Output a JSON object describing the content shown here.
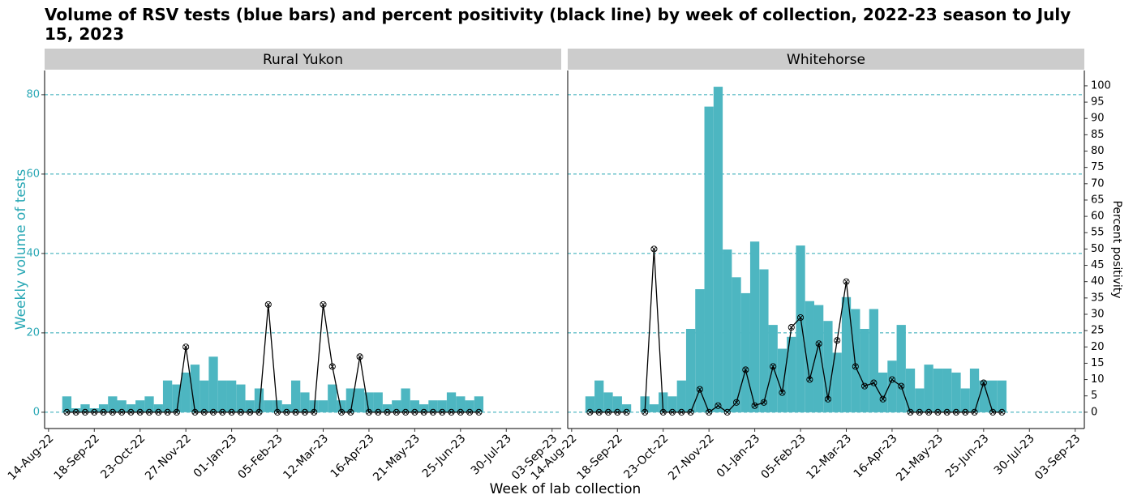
{
  "title": "Volume of RSV tests (blue bars) and percent positivity (black line) by week of collection, 2022-23 season to July 15, 2023",
  "xlabel": "Week of lab collection",
  "ylabel": "Weekly volume of tests",
  "y2label": "Percent positivity",
  "chart_data": [
    {
      "type": "bar",
      "title": "Rural Yukon",
      "x": [
        "2022-08-28",
        "2022-09-04",
        "2022-09-11",
        "2022-09-18",
        "2022-09-25",
        "2022-10-02",
        "2022-10-09",
        "2022-10-16",
        "2022-10-23",
        "2022-10-30",
        "2022-11-06",
        "2022-11-13",
        "2022-11-20",
        "2022-11-27",
        "2022-12-04",
        "2022-12-11",
        "2022-12-18",
        "2022-12-25",
        "2023-01-01",
        "2023-01-08",
        "2023-01-15",
        "2023-01-22",
        "2023-01-29",
        "2023-02-05",
        "2023-02-12",
        "2023-02-19",
        "2023-02-26",
        "2023-03-05",
        "2023-03-12",
        "2023-03-19",
        "2023-03-26",
        "2023-04-02",
        "2023-04-09",
        "2023-04-16",
        "2023-04-23",
        "2023-04-30",
        "2023-05-07",
        "2023-05-14",
        "2023-05-21",
        "2023-05-28",
        "2023-06-04",
        "2023-06-11",
        "2023-06-18",
        "2023-06-25",
        "2023-07-02",
        "2023-07-09"
      ],
      "series": [
        {
          "color": "#4db6c1",
          "values": [
            4,
            1,
            2,
            1,
            2,
            4,
            3,
            2,
            3,
            4,
            2,
            8,
            7,
            10,
            12,
            8,
            14,
            8,
            8,
            7,
            3,
            6,
            3,
            3,
            2,
            8,
            5,
            3,
            3,
            7,
            3,
            6,
            6,
            5,
            5,
            2,
            3,
            6,
            3,
            2,
            3,
            3,
            5,
            4,
            3,
            4
          ]
        },
        {
          "type": "line",
          "axis": "y2",
          "color": "#000000",
          "values": [
            0,
            0,
            0,
            0,
            0,
            0,
            0,
            0,
            0,
            0,
            0,
            0,
            0,
            20,
            0,
            0,
            0,
            0,
            0,
            0,
            0,
            0,
            33,
            0,
            0,
            0,
            0,
            0,
            33,
            14,
            0,
            0,
            17,
            0,
            0,
            0,
            0,
            0,
            0,
            0,
            0,
            0,
            0,
            0,
            0,
            0
          ]
        }
      ],
      "xlim": [
        "2022-08-11",
        "2023-09-10"
      ],
      "xticks": [
        {
          "value": "2022-08-14",
          "label": "14-Aug-22"
        },
        {
          "value": "2022-09-18",
          "label": "18-Sep-22"
        },
        {
          "value": "2022-10-23",
          "label": "23-Oct-22"
        },
        {
          "value": "2022-11-27",
          "label": "27-Nov-22"
        },
        {
          "value": "2023-01-01",
          "label": "01-Jan-23"
        },
        {
          "value": "2023-02-05",
          "label": "05-Feb-23"
        },
        {
          "value": "2023-03-12",
          "label": "12-Mar-23"
        },
        {
          "value": "2023-04-16",
          "label": "16-Apr-23"
        },
        {
          "value": "2023-05-21",
          "label": "21-May-23"
        },
        {
          "value": "2023-06-25",
          "label": "25-Jun-23"
        },
        {
          "value": "2023-07-30",
          "label": "30-Jul-23"
        },
        {
          "value": "2023-09-03",
          "label": "03-Sep-23"
        }
      ],
      "ylim": [
        -4.1,
        86.1
      ],
      "yticks": [
        0,
        20,
        40,
        60,
        80
      ],
      "y2lim": [
        -5,
        104.7
      ],
      "grid": true
    },
    {
      "type": "bar",
      "title": "Whitehorse",
      "x": [
        "2022-08-28",
        "2022-09-04",
        "2022-09-11",
        "2022-09-18",
        "2022-09-25",
        "2022-10-02",
        "2022-10-09",
        "2022-10-16",
        "2022-10-23",
        "2022-10-30",
        "2022-11-06",
        "2022-11-13",
        "2022-11-20",
        "2022-11-27",
        "2022-12-04",
        "2022-12-11",
        "2022-12-18",
        "2022-12-25",
        "2023-01-01",
        "2023-01-08",
        "2023-01-15",
        "2023-01-22",
        "2023-01-29",
        "2023-02-05",
        "2023-02-12",
        "2023-02-19",
        "2023-02-26",
        "2023-03-05",
        "2023-03-12",
        "2023-03-19",
        "2023-03-26",
        "2023-04-02",
        "2023-04-09",
        "2023-04-16",
        "2023-04-23",
        "2023-04-30",
        "2023-05-07",
        "2023-05-14",
        "2023-05-21",
        "2023-05-28",
        "2023-06-04",
        "2023-06-11",
        "2023-06-18",
        "2023-06-25",
        "2023-07-02",
        "2023-07-09"
      ],
      "series": [
        {
          "color": "#4db6c1",
          "values": [
            4,
            8,
            5,
            4,
            2,
            0,
            4,
            2,
            5,
            4,
            8,
            21,
            31,
            77,
            82,
            41,
            34,
            30,
            43,
            36,
            22,
            16,
            19,
            42,
            28,
            27,
            23,
            15,
            29,
            26,
            21,
            26,
            10,
            13,
            22,
            11,
            6,
            12,
            11,
            11,
            10,
            6,
            11,
            8,
            8,
            8
          ]
        },
        {
          "type": "line",
          "axis": "y2",
          "color": "#000000",
          "values": [
            0,
            0,
            0,
            0,
            0,
            null,
            0,
            50,
            0,
            0,
            0,
            0,
            7,
            0,
            2,
            0,
            3,
            13,
            2,
            3,
            14,
            6,
            26,
            29,
            10,
            21,
            4,
            22,
            40,
            14,
            8,
            9,
            4,
            10,
            8,
            0,
            0,
            0,
            0,
            0,
            0,
            0,
            0,
            9,
            0,
            0
          ]
        }
      ],
      "xlim": [
        "2022-08-11",
        "2023-09-10"
      ],
      "xticks": [
        {
          "value": "2022-08-14",
          "label": "14-Aug-22"
        },
        {
          "value": "2022-09-18",
          "label": "18-Sep-22"
        },
        {
          "value": "2022-10-23",
          "label": "23-Oct-22"
        },
        {
          "value": "2022-11-27",
          "label": "27-Nov-22"
        },
        {
          "value": "2023-01-01",
          "label": "01-Jan-23"
        },
        {
          "value": "2023-02-05",
          "label": "05-Feb-23"
        },
        {
          "value": "2023-03-12",
          "label": "12-Mar-23"
        },
        {
          "value": "2023-04-16",
          "label": "16-Apr-23"
        },
        {
          "value": "2023-05-21",
          "label": "21-May-23"
        },
        {
          "value": "2023-06-25",
          "label": "25-Jun-23"
        },
        {
          "value": "2023-07-30",
          "label": "30-Jul-23"
        },
        {
          "value": "2023-09-03",
          "label": "03-Sep-23"
        }
      ],
      "ylim": [
        -4.1,
        86.1
      ],
      "y2lim": [
        -5,
        104.7
      ],
      "y2ticks": [
        0,
        5,
        10,
        15,
        20,
        25,
        30,
        35,
        40,
        45,
        50,
        55,
        60,
        65,
        70,
        75,
        80,
        85,
        90,
        95,
        100
      ],
      "grid": true
    }
  ]
}
